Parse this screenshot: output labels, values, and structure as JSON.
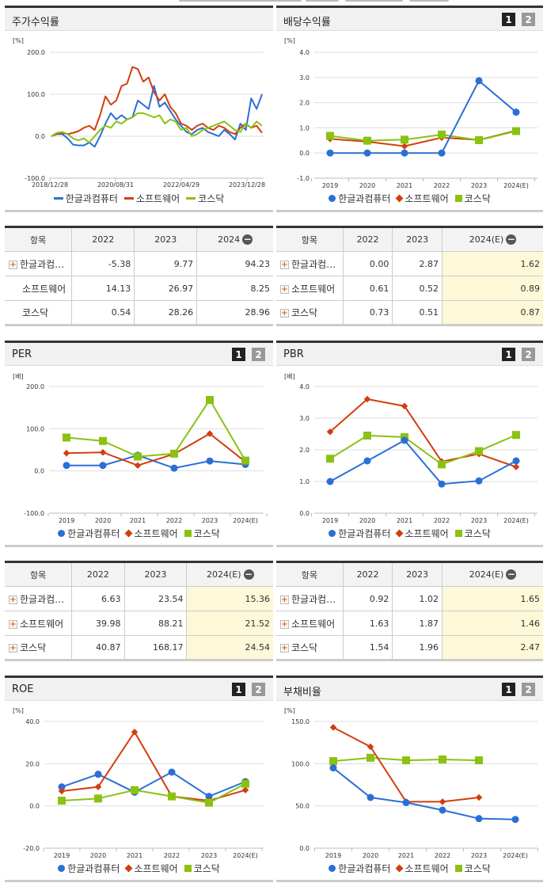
{
  "colors": {
    "company": "#2a6fd6",
    "sector": "#d23e0e",
    "kosdaq": "#8ac212"
  },
  "legend": {
    "company": "한글과컴퓨터",
    "sector": "소프트웨어",
    "kosdaq": "코스닥"
  },
  "panels": {
    "stock_return": {
      "title": "주가수익률",
      "unit": "[%]",
      "yticks": [
        "200.0",
        "100.0",
        "0.0",
        "-100.0"
      ],
      "xticks": [
        "2018/12/28",
        "2020/08/31",
        "2022/04/29",
        "2023/12/28"
      ]
    },
    "dividend": {
      "title": "배당수익률",
      "unit": "[%]",
      "page1": "1",
      "page2": "2",
      "yticks": [
        "4.0",
        "3.0",
        "2.0",
        "1.0",
        "0.0",
        "-1.0"
      ],
      "xticks": [
        "2019",
        "2020",
        "2021",
        "2022",
        "2023",
        "2024(E)"
      ]
    },
    "per": {
      "title": "PER",
      "unit": "[배]",
      "page1": "1",
      "page2": "2",
      "yticks": [
        "200.0",
        "100.0",
        "0.0",
        "-100.0"
      ],
      "xticks": [
        "2019",
        "2020",
        "2021",
        "2022",
        "2023",
        "2024(E)"
      ]
    },
    "pbr": {
      "title": "PBR",
      "unit": "[배]",
      "page1": "1",
      "page2": "2",
      "yticks": [
        "4.0",
        "3.0",
        "2.0",
        "1.0",
        "0.0"
      ],
      "xticks": [
        "2019",
        "2020",
        "2021",
        "2022",
        "2023",
        "2024(E)"
      ]
    },
    "roe": {
      "title": "ROE",
      "unit": "[%]",
      "page1": "1",
      "page2": "2",
      "yticks": [
        "40.0",
        "20.0",
        "0.0",
        "-20.0"
      ],
      "xticks": [
        "2019",
        "2020",
        "2021",
        "2022",
        "2023",
        "2024(E)"
      ]
    },
    "debt": {
      "title": "부채비율",
      "unit": "[%]",
      "page1": "1",
      "page2": "2",
      "yticks": [
        "150.0",
        "100.0",
        "50.0",
        "0.0"
      ],
      "xticks": [
        "2019",
        "2020",
        "2021",
        "2022",
        "2023",
        "2024(E)"
      ]
    }
  },
  "tables": {
    "stock_return": {
      "headers": [
        "항목",
        "2022",
        "2023",
        "2024"
      ],
      "rows": [
        {
          "name": "한글과컴…",
          "expand": true,
          "values": [
            "-5.38",
            "9.77",
            "94.23"
          ]
        },
        {
          "name": "소프트웨어",
          "expand": false,
          "values": [
            "14.13",
            "26.97",
            "8.25"
          ]
        },
        {
          "name": "코스닥",
          "expand": false,
          "values": [
            "0.54",
            "28.26",
            "28.96"
          ]
        }
      ]
    },
    "dividend": {
      "headers": [
        "항목",
        "2022",
        "2023",
        "2024(E)"
      ],
      "rows": [
        {
          "name": "한글과컴…",
          "expand": true,
          "values": [
            "0.00",
            "2.87",
            "1.62"
          ]
        },
        {
          "name": "소프트웨어",
          "expand": true,
          "values": [
            "0.61",
            "0.52",
            "0.89"
          ]
        },
        {
          "name": "코스닥",
          "expand": true,
          "values": [
            "0.73",
            "0.51",
            "0.87"
          ]
        }
      ]
    },
    "per": {
      "headers": [
        "항목",
        "2022",
        "2023",
        "2024(E)"
      ],
      "rows": [
        {
          "name": "한글과컴…",
          "expand": true,
          "values": [
            "6.63",
            "23.54",
            "15.36"
          ]
        },
        {
          "name": "소프트웨어",
          "expand": true,
          "values": [
            "39.98",
            "88.21",
            "21.52"
          ]
        },
        {
          "name": "코스닥",
          "expand": true,
          "values": [
            "40.87",
            "168.17",
            "24.54"
          ]
        }
      ]
    },
    "pbr": {
      "headers": [
        "항목",
        "2022",
        "2023",
        "2024(E)"
      ],
      "rows": [
        {
          "name": "한글과컴…",
          "expand": true,
          "values": [
            "0.92",
            "1.02",
            "1.65"
          ]
        },
        {
          "name": "소프트웨어",
          "expand": true,
          "values": [
            "1.63",
            "1.87",
            "1.46"
          ]
        },
        {
          "name": "코스닥",
          "expand": true,
          "values": [
            "1.54",
            "1.96",
            "2.47"
          ]
        }
      ]
    }
  },
  "chart_data": [
    {
      "type": "line",
      "title": "주가수익률",
      "ylabel": "[%]",
      "ylim": [
        -100,
        200
      ],
      "x": [
        "2018/12/28",
        "2020/08/31",
        "2022/04/29",
        "2023/12/28"
      ],
      "series": [
        {
          "name": "한글과컴퓨터",
          "values": [
            0,
            5,
            5,
            -5,
            -20,
            -22,
            -22,
            -15,
            -25,
            0,
            30,
            55,
            40,
            50,
            40,
            45,
            85,
            75,
            65,
            120,
            70,
            80,
            60,
            40,
            25,
            10,
            5,
            15,
            20,
            10,
            5,
            0,
            15,
            5,
            -8,
            30,
            15,
            90,
            65,
            100
          ]
        },
        {
          "name": "소프트웨어",
          "values": [
            0,
            5,
            8,
            5,
            8,
            12,
            20,
            25,
            15,
            50,
            95,
            75,
            85,
            120,
            125,
            165,
            160,
            130,
            140,
            105,
            85,
            100,
            70,
            55,
            30,
            25,
            15,
            25,
            30,
            20,
            15,
            25,
            20,
            10,
            5,
            20,
            30,
            20,
            25,
            8
          ]
        },
        {
          "name": "코스닥",
          "values": [
            0,
            8,
            10,
            5,
            -5,
            -10,
            -5,
            -15,
            0,
            15,
            25,
            20,
            35,
            30,
            40,
            45,
            55,
            55,
            50,
            45,
            50,
            30,
            40,
            35,
            15,
            20,
            0,
            5,
            15,
            20,
            25,
            30,
            35,
            25,
            15,
            10,
            30,
            20,
            35,
            25
          ]
        }
      ]
    },
    {
      "type": "line",
      "title": "배당수익률",
      "ylabel": "[%]",
      "ylim": [
        -1,
        4
      ],
      "categories": [
        "2019",
        "2020",
        "2021",
        "2022",
        "2023",
        "2024(E)"
      ],
      "series": [
        {
          "name": "한글과컴퓨터",
          "values": [
            0.0,
            0.0,
            0.0,
            0.0,
            2.87,
            1.62
          ]
        },
        {
          "name": "소프트웨어",
          "values": [
            0.56,
            0.45,
            0.27,
            0.61,
            0.52,
            0.89
          ]
        },
        {
          "name": "코스닥",
          "values": [
            0.68,
            0.49,
            0.53,
            0.73,
            0.51,
            0.87
          ]
        }
      ]
    },
    {
      "type": "line",
      "title": "PER",
      "ylabel": "[배]",
      "ylim": [
        -100,
        200
      ],
      "categories": [
        "2019",
        "2020",
        "2021",
        "2022",
        "2023",
        "2024(E)"
      ],
      "series": [
        {
          "name": "한글과컴퓨터",
          "values": [
            13,
            13,
            37,
            6.63,
            23.54,
            15.36
          ]
        },
        {
          "name": "소프트웨어",
          "values": [
            42,
            44,
            13,
            39.98,
            88.21,
            21.52
          ]
        },
        {
          "name": "코스닥",
          "values": [
            79,
            71,
            34,
            40.87,
            168.17,
            24.54
          ]
        }
      ]
    },
    {
      "type": "line",
      "title": "PBR",
      "ylabel": "[배]",
      "ylim": [
        0,
        4
      ],
      "categories": [
        "2019",
        "2020",
        "2021",
        "2022",
        "2023",
        "2024(E)"
      ],
      "series": [
        {
          "name": "한글과컴퓨터",
          "values": [
            1.0,
            1.65,
            2.3,
            0.92,
            1.02,
            1.65
          ]
        },
        {
          "name": "소프트웨어",
          "values": [
            2.57,
            3.6,
            3.38,
            1.63,
            1.87,
            1.46
          ]
        },
        {
          "name": "코스닥",
          "values": [
            1.72,
            2.45,
            2.4,
            1.54,
            1.96,
            2.47
          ]
        }
      ]
    },
    {
      "type": "line",
      "title": "ROE",
      "ylabel": "[%]",
      "ylim": [
        -20,
        40
      ],
      "categories": [
        "2019",
        "2020",
        "2021",
        "2022",
        "2023",
        "2024(E)"
      ],
      "series": [
        {
          "name": "한글과컴퓨터",
          "values": [
            9,
            15,
            6.5,
            16,
            4.5,
            11.5
          ]
        },
        {
          "name": "소프트웨어",
          "values": [
            7,
            9,
            35,
            4.5,
            2.5,
            7.5
          ]
        },
        {
          "name": "코스닥",
          "values": [
            2.5,
            3.5,
            7.5,
            4.5,
            1.5,
            10.5
          ]
        }
      ]
    },
    {
      "type": "line",
      "title": "부채비율",
      "ylabel": "[%]",
      "ylim": [
        0,
        150
      ],
      "categories": [
        "2019",
        "2020",
        "2021",
        "2022",
        "2023",
        "2024(E)"
      ],
      "series": [
        {
          "name": "한글과컴퓨터",
          "values": [
            95,
            60,
            54,
            45,
            35,
            34
          ]
        },
        {
          "name": "소프트웨어",
          "values": [
            143,
            120,
            55,
            55,
            60,
            null
          ]
        },
        {
          "name": "코스닥",
          "values": [
            103,
            107,
            104,
            105,
            104,
            null
          ]
        }
      ]
    }
  ]
}
